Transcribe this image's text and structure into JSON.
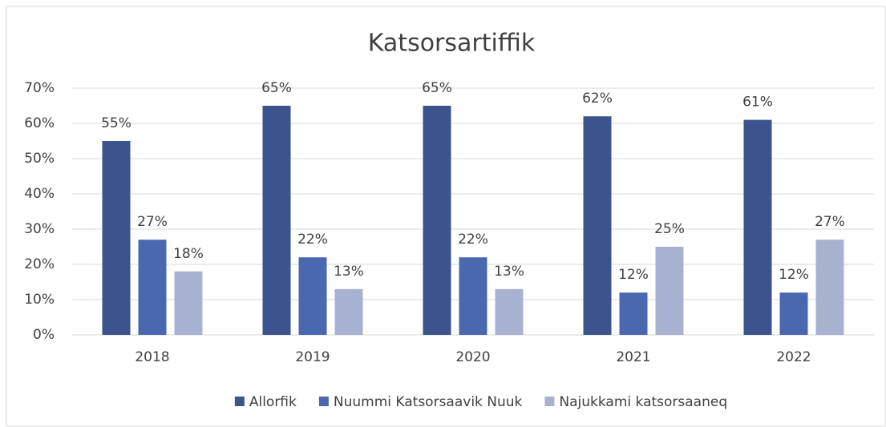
{
  "chart_data": {
    "type": "bar",
    "title": "Katsorsartiffik",
    "categories": [
      "2018",
      "2019",
      "2020",
      "2021",
      "2022"
    ],
    "series": [
      {
        "name": "Allorfik",
        "color": "#3c538d",
        "values": [
          55,
          65,
          65,
          62,
          61
        ],
        "value_labels": [
          "55%",
          "65%",
          "65%",
          "62%",
          "61%"
        ]
      },
      {
        "name": "Nuummi Katsorsaavik Nuuk",
        "color": "#4a68b0",
        "values": [
          27,
          22,
          22,
          12,
          12
        ],
        "value_labels": [
          "27%",
          "22%",
          "22%",
          "12%",
          "12%"
        ]
      },
      {
        "name": "Najukkami katsorsaaneq",
        "color": "#a9b1d0",
        "values": [
          18,
          13,
          13,
          25,
          27
        ],
        "value_labels": [
          "18%",
          "13%",
          "13%",
          "25%",
          "27%"
        ]
      }
    ],
    "ylim": [
      0,
      70
    ],
    "yticks": [
      {
        "value": 0,
        "label": "0%"
      },
      {
        "value": 10,
        "label": "10%"
      },
      {
        "value": 20,
        "label": "20%"
      },
      {
        "value": 30,
        "label": "30%"
      },
      {
        "value": 40,
        "label": "40%"
      },
      {
        "value": 50,
        "label": "50%"
      },
      {
        "value": 60,
        "label": "60%"
      },
      {
        "value": 70,
        "label": "70%"
      }
    ],
    "grid": true,
    "legend": "bottom"
  }
}
